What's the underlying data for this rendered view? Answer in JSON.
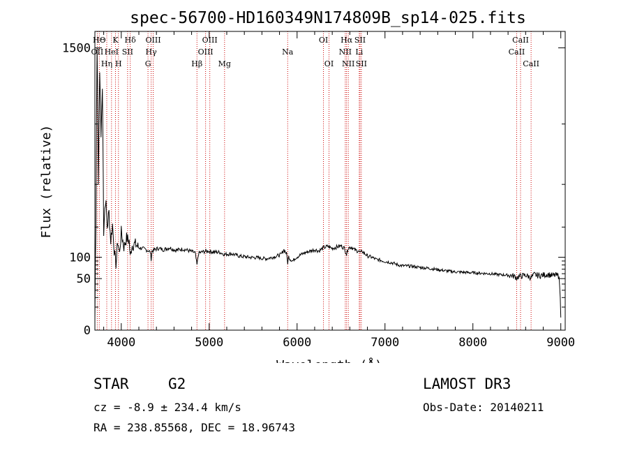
{
  "chart_data": {
    "type": "line",
    "title": "spec-56700-HD160349N174809B_sp14-025.fits",
    "xlabel": "Wavelength (Å)",
    "ylabel": "Flux (relative)",
    "xlim": [
      3700,
      9050
    ],
    "ylim": [
      0,
      1680
    ],
    "y_transform": "sqrt",
    "x_ticks": [
      4000,
      5000,
      6000,
      7000,
      8000,
      9000
    ],
    "x_tick_labels": [
      "4000",
      "5000",
      "6000",
      "7000",
      "8000",
      "9000"
    ],
    "y_ticks": [
      0,
      50,
      100,
      1500
    ],
    "y_tick_labels": [
      "0",
      "50",
      "100",
      "1500"
    ],
    "series": [
      {
        "name": "flux",
        "x": [
          3700,
          3712,
          3725,
          3740,
          3755,
          3770,
          3785,
          3800,
          3820,
          3840,
          3860,
          3880,
          3900,
          3920,
          3940,
          3960,
          3980,
          4000,
          4030,
          4060,
          4090,
          4102,
          4120,
          4160,
          4200,
          4250,
          4300,
          4330,
          4340,
          4350,
          4380,
          4420,
          4480,
          4550,
          4620,
          4700,
          4780,
          4840,
          4861,
          4880,
          4920,
          4980,
          5050,
          5120,
          5175,
          5250,
          5350,
          5450,
          5550,
          5650,
          5750,
          5820,
          5850,
          5880,
          5893,
          5905,
          5920,
          5950,
          5980,
          6020,
          6080,
          6150,
          6200,
          6250,
          6300,
          6350,
          6400,
          6450,
          6500,
          6540,
          6563,
          6580,
          6620,
          6660,
          6700,
          6720,
          6740,
          6760,
          6800,
          6850,
          6900,
          6950,
          7000,
          7050,
          7100,
          7150,
          7200,
          7300,
          7400,
          7500,
          7600,
          7700,
          7800,
          7900,
          8000,
          8100,
          8200,
          8300,
          8400,
          8450,
          8498,
          8542,
          8600,
          8662,
          8700,
          8750,
          8800,
          8850,
          8900,
          8950,
          8980,
          9000
        ],
        "y": [
          2,
          200,
          1500,
          400,
          1250,
          700,
          1100,
          180,
          330,
          200,
          260,
          150,
          210,
          120,
          80,
          150,
          110,
          180,
          130,
          160,
          150,
          100,
          135,
          140,
          128,
          125,
          120,
          115,
          95,
          118,
          122,
          126,
          122,
          128,
          120,
          124,
          118,
          113,
          80,
          112,
          115,
          118,
          115,
          114,
          108,
          110,
          103,
          100,
          99,
          96,
          102,
          108,
          122,
          110,
          85,
          102,
          95,
          90,
          98,
          104,
          112,
          118,
          122,
          118,
          128,
          132,
          126,
          130,
          134,
          126,
          108,
          128,
          130,
          120,
          118,
          112,
          118,
          112,
          104,
          100,
          94,
          92,
          89,
          87,
          84,
          80,
          78,
          77,
          74,
          72,
          69,
          66,
          64,
          63,
          62,
          61,
          60,
          58,
          57,
          56,
          52,
          55,
          57,
          52,
          58,
          56,
          57,
          59,
          56,
          57,
          54,
          3
        ]
      }
    ],
    "lines": [
      {
        "name": "HΘ",
        "wavelength": 3750,
        "row": 1
      },
      {
        "name": "OII",
        "wavelength": 3727,
        "row": 2
      },
      {
        "name": "Hη",
        "wavelength": 3835,
        "row": 3
      },
      {
        "name": "K",
        "wavelength": 3934,
        "row": 1
      },
      {
        "name": "HeI",
        "wavelength": 3889,
        "row": 2
      },
      {
        "name": "H",
        "wavelength": 3968,
        "row": 3
      },
      {
        "name": "Hδ",
        "wavelength": 4102,
        "row": 1
      },
      {
        "name": "SII",
        "wavelength": 4072,
        "row": 2
      },
      {
        "name": "OIII",
        "wavelength": 4363,
        "row": 1
      },
      {
        "name": "Hγ",
        "wavelength": 4340,
        "row": 2
      },
      {
        "name": "G",
        "wavelength": 4304,
        "row": 3
      },
      {
        "name": "Hβ",
        "wavelength": 4861,
        "row": 3
      },
      {
        "name": "OIII",
        "wavelength": 5007,
        "row": 1
      },
      {
        "name": "OIII",
        "wavelength": 4959,
        "row": 2
      },
      {
        "name": "Mg",
        "wavelength": 5175,
        "row": 3
      },
      {
        "name": "Na",
        "wavelength": 5893,
        "row": 2
      },
      {
        "name": "OI",
        "wavelength": 6300,
        "row": 1
      },
      {
        "name": "OI",
        "wavelength": 6363,
        "row": 3
      },
      {
        "name": "Hα",
        "wavelength": 6563,
        "row": 1
      },
      {
        "name": "NII",
        "wavelength": 6548,
        "row": 2
      },
      {
        "name": "NII",
        "wavelength": 6583,
        "row": 3
      },
      {
        "name": "SII",
        "wavelength": 6716,
        "row": 1
      },
      {
        "name": "Li",
        "wavelength": 6707,
        "row": 2
      },
      {
        "name": "SII",
        "wavelength": 6731,
        "row": 3
      },
      {
        "name": "CaII",
        "wavelength": 8542,
        "row": 1
      },
      {
        "name": "CaII",
        "wavelength": 8498,
        "row": 2
      },
      {
        "name": "CaII",
        "wavelength": 8662,
        "row": 3
      }
    ]
  },
  "info": {
    "object_class": "STAR",
    "subclass": "G2",
    "survey": "LAMOST DR3",
    "redshift": "cz = -8.9 ± 234.4 km/s",
    "obs_date": "Obs-Date: 20140211",
    "coords": "RA = 238.85568, DEC =  18.96743"
  },
  "colors": {
    "spectrum": "#000000",
    "line_markers": "#cc0000",
    "axes": "#000000",
    "background": "#ffffff"
  }
}
